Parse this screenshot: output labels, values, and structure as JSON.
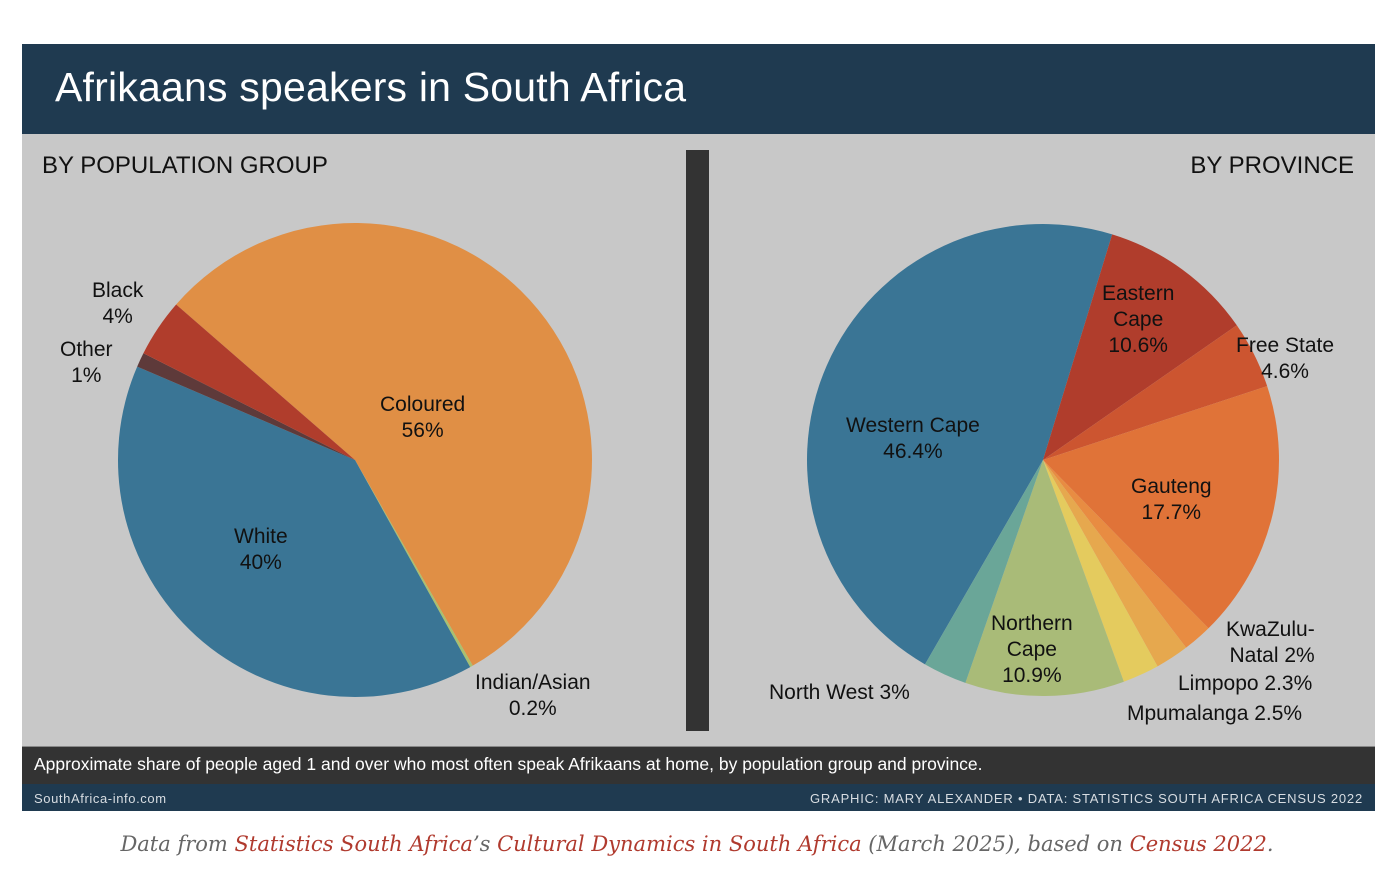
{
  "header": {
    "title": "Afrikaans speakers in South Africa"
  },
  "sections": {
    "left": "BY POPULATION GROUP",
    "right": "BY PROVINCE"
  },
  "caption": "Approximate share of people aged 1 and over who most often speak Afrikaans at home, by population group and province.",
  "footer": {
    "site": "SouthAfrica-info.com",
    "credit": "GRAPHIC: MARY ALEXANDER • DATA: STATISTICS SOUTH AFRICA CENSUS 2022"
  },
  "source_note": {
    "prefix": "Data from ",
    "link1": "Statistics South Africa",
    "mid1": "’s ",
    "link2": "Cultural Dynamics in South Africa",
    "mid2": " (March 2025), based on ",
    "link3": "Census 2022",
    "suffix": "."
  },
  "labels": {
    "population": {
      "coloured": [
        "Coloured",
        "56%"
      ],
      "white": [
        "White",
        "40%"
      ],
      "black": [
        "Black",
        "4%"
      ],
      "other": [
        "Other",
        "1%"
      ],
      "indian": [
        "Indian/Asian",
        "0.2%"
      ]
    },
    "province": {
      "western_cape": [
        "Western Cape",
        "46.4%"
      ],
      "eastern_cape": [
        "Eastern",
        "Cape",
        "10.6%"
      ],
      "free_state": [
        "Free State",
        "4.6%"
      ],
      "gauteng": [
        "Gauteng",
        "17.7%"
      ],
      "kzn": [
        "KwaZulu-",
        "Natal 2%"
      ],
      "limpopo": "Limpopo 2.3%",
      "mpumalanga": "Mpumalanga 2.5%",
      "northern_cape": [
        "Northern",
        "Cape",
        "10.9%"
      ],
      "north_west": "North West 3%"
    }
  },
  "chart_data": [
    {
      "type": "pie",
      "title": "BY POPULATION GROUP",
      "center": [
        355,
        460
      ],
      "radius": 237,
      "start_angle_deg": -49,
      "categories": [
        "Coloured",
        "Indian/Asian",
        "White",
        "Other",
        "Black"
      ],
      "values": [
        56,
        0.2,
        40,
        1,
        4
      ],
      "colors": [
        "#e08f45",
        "#a8c070",
        "#3a7595",
        "#5e3a3a",
        "#b03d2c"
      ],
      "unit": "%"
    },
    {
      "type": "pie",
      "title": "BY PROVINCE",
      "center": [
        1043,
        460
      ],
      "radius": 236,
      "start_angle_deg": -150,
      "categories": [
        "Western Cape",
        "Eastern Cape",
        "Free State",
        "Gauteng",
        "KwaZulu-Natal",
        "Limpopo",
        "Mpumalanga",
        "Northern Cape",
        "North West"
      ],
      "values": [
        46.4,
        10.6,
        4.6,
        17.7,
        2,
        2.3,
        2.5,
        10.9,
        3
      ],
      "colors": [
        "#3a7595",
        "#b03d2c",
        "#cc5530",
        "#e07338",
        "#e88c42",
        "#e6a84e",
        "#e4cb5e",
        "#a9bb78",
        "#6aa698"
      ],
      "unit": "%"
    }
  ]
}
